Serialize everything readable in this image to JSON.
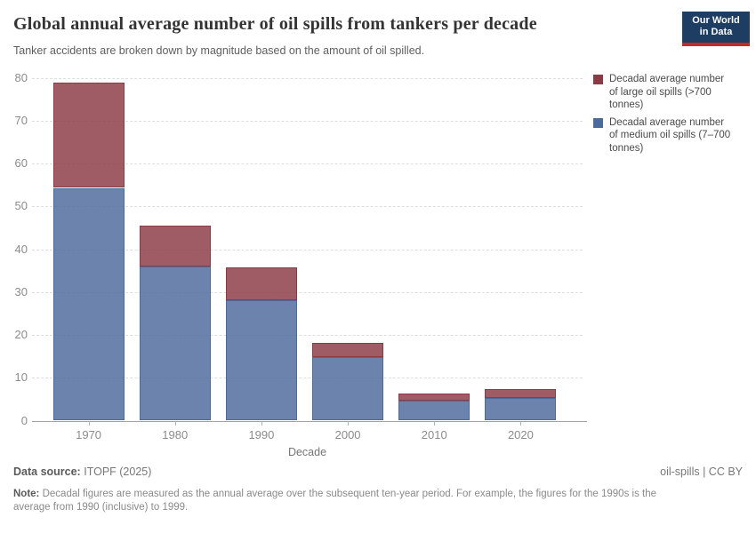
{
  "header": {
    "title": "Global annual average number of oil spills from tankers per decade",
    "subtitle": "Tanker accidents are broken down by magnitude based on the amount of oil spilled.",
    "logo": {
      "line1": "Our World",
      "line2": "in Data",
      "bg_color": "#1d3d63",
      "accent_color": "#c82823"
    }
  },
  "chart_data": {
    "type": "bar",
    "stacked": true,
    "categories": [
      "1970",
      "1980",
      "1990",
      "2000",
      "2010",
      "2020"
    ],
    "series": [
      {
        "key": "large",
        "name": "Decadal average number of large oil spills (>700 tonnes)",
        "color": "#8b3b46",
        "values": [
          24.5,
          9.4,
          7.7,
          3.2,
          1.8,
          2.2
        ]
      },
      {
        "key": "medium",
        "name": "Decadal average number of medium oil spills (7–700 tonnes)",
        "color": "#4d6a9c",
        "values": [
          54.3,
          36.0,
          28.1,
          14.9,
          4.6,
          5.2
        ]
      }
    ],
    "totals": [
      78.8,
      45.4,
      35.8,
      18.1,
      6.4,
      7.4
    ],
    "title": "Global annual average number of oil spills from tankers per decade",
    "xlabel": "Decade",
    "ylabel": "",
    "ylim": [
      0,
      80
    ],
    "yticks": [
      0,
      10,
      20,
      30,
      40,
      50,
      60,
      70,
      80
    ],
    "grid": "horizontal-dashed",
    "legend_position": "right"
  },
  "footer": {
    "source_label": "Data source:",
    "source_value": "ITOPF (2025)",
    "rights": "oil-spills | CC BY",
    "note_label": "Note:",
    "note_text": "Decadal figures are measured as the annual average over the subsequent ten-year period. For example, the figures for the 1990s is the average from 1990 (inclusive) to 1999."
  }
}
